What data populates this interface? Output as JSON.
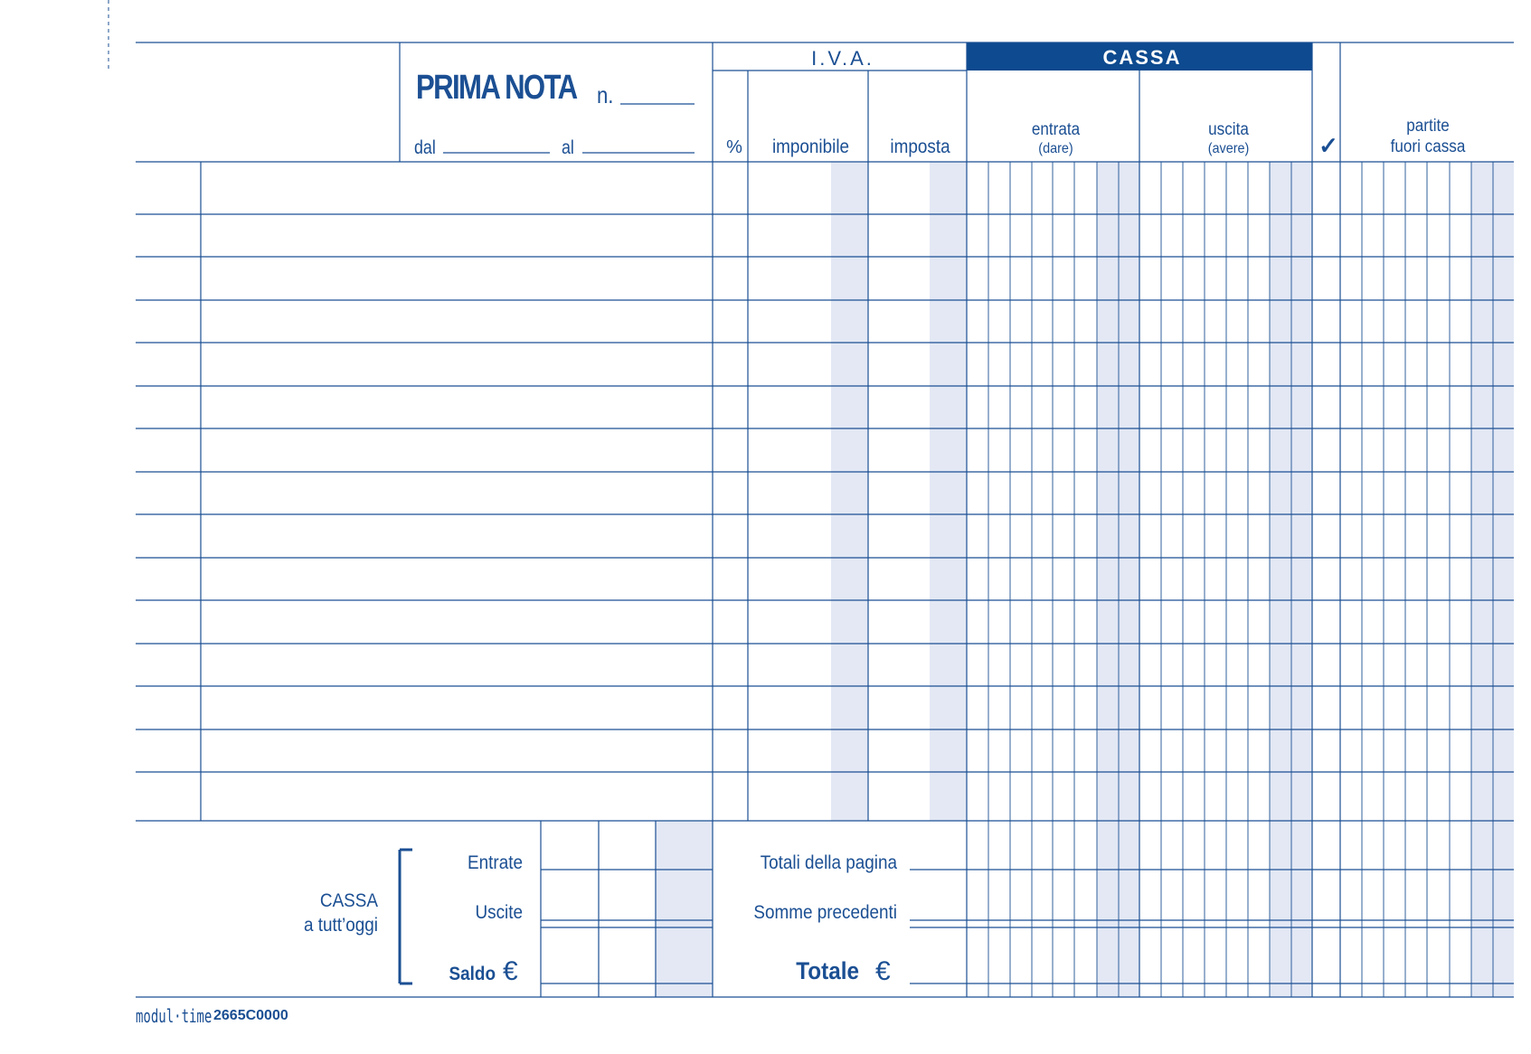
{
  "form": {
    "title": "PRIMA NOTA",
    "number_label": "n.",
    "from_label": "dal",
    "to_label": "al"
  },
  "header": {
    "iva": "I.V.A.",
    "cassa": "CASSA",
    "percent": "%",
    "imponibile": "imponibile",
    "imposta": "imposta",
    "entrata": "entrata",
    "entrata_sub": "(dare)",
    "uscita": "uscita",
    "uscita_sub": "(avere)",
    "check_mark": "✓",
    "partite_line1": "partite",
    "partite_line2": "fuori cassa"
  },
  "entry_rows": 15,
  "summary": {
    "cassa_title": "CASSA",
    "cassa_subtitle": "a tutt’oggi",
    "entrate": "Entrate",
    "uscite": "Uscite",
    "saldo": "Saldo",
    "currency": "€",
    "totali_pagina": "Totali della pagina",
    "somme_precedenti": "Somme precedenti",
    "totale": "Totale"
  },
  "footer": {
    "brand": "modul·time",
    "code": "2665C0000"
  },
  "colors": {
    "ink": "#1b4f93",
    "header_fill": "#0d4a8f",
    "shade": "#e3e8f4"
  }
}
